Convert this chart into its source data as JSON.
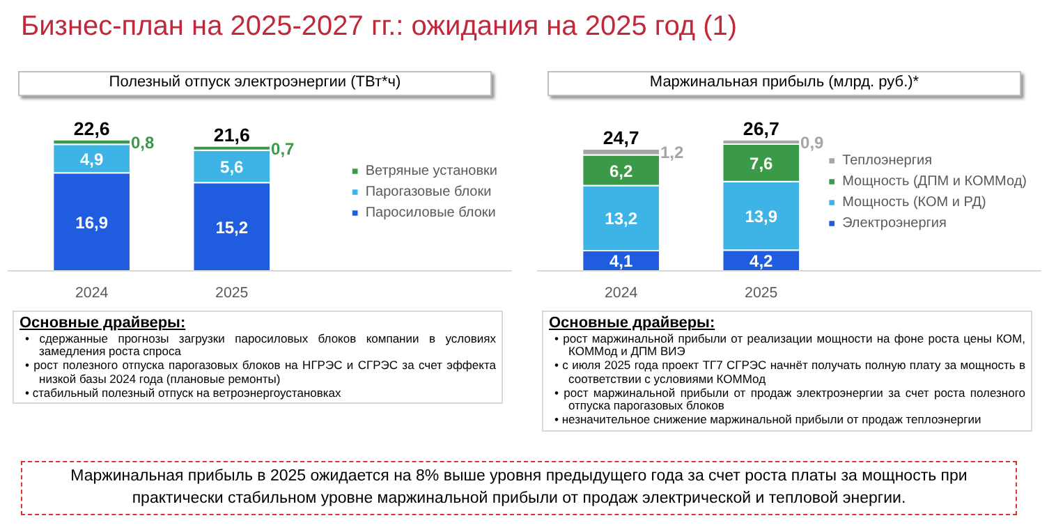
{
  "chart_data": [
    {
      "type": "other",
      "title": "Бизнес-план на 2025-2027 гг.: ожидания на 2025 год (1)"
    },
    {
      "type": "bar",
      "title": "Полезный отпуск электроэнергии (ТВт*ч)",
      "categories": [
        "2024",
        "2025"
      ],
      "stacked": true,
      "legend": "right",
      "tick_labels": "x",
      "grid": false,
      "series": [
        {
          "name": "Паросиловые блоки",
          "color": "#1f5ce0",
          "values": [
            16.9,
            15.2
          ],
          "value_labels": [
            "16,9",
            "15,2"
          ]
        },
        {
          "name": "Парогазовые блоки",
          "color": "#3db4e5",
          "values": [
            4.9,
            5.6
          ],
          "value_labels": [
            "4,9",
            "5,6"
          ]
        },
        {
          "name": "Ветряные установки",
          "color": "#3a9a47",
          "values": [
            0.8,
            0.7
          ],
          "value_labels": [
            "0,8",
            "0,7"
          ]
        }
      ],
      "totals": [
        "22,6",
        "21,6"
      ],
      "annotations": [
        "Основные драйверы:",
        "• сдержанные прогнозы загрузки паросиловых блоков компании в условиях замедления роста спроса",
        "• рост полезного отпуска парогазовых блоков на НГРЭС и СГРЭС за счет эффекта низкой базы 2024 года (плановые ремонты)",
        "• стабильный полезный отпуск на ветроэнергоустановках"
      ]
    },
    {
      "type": "bar",
      "title": "Маржинальная прибыль (млрд. руб.)*",
      "categories": [
        "2024",
        "2025"
      ],
      "stacked": true,
      "legend": "right",
      "tick_labels": "x",
      "grid": false,
      "series": [
        {
          "name": "Электроэнергия",
          "color": "#1f5ce0",
          "values": [
            4.1,
            4.2
          ],
          "value_labels": [
            "4,1",
            "4,2"
          ]
        },
        {
          "name": "Мощность (КОМ и РД)",
          "color": "#3db4e5",
          "values": [
            13.2,
            13.9
          ],
          "value_labels": [
            "13,2",
            "13,9"
          ]
        },
        {
          "name": "Мощность (ДПМ и КОММод)",
          "color": "#3a9a47",
          "values": [
            6.2,
            7.6
          ],
          "value_labels": [
            "6,2",
            "7,6"
          ]
        },
        {
          "name": "Теплоэнергия",
          "color": "#a6a6a6",
          "values": [
            1.2,
            0.9
          ],
          "value_labels": [
            "1,2",
            "0,9"
          ]
        }
      ],
      "totals": [
        "24,7",
        "26,7"
      ],
      "annotations": [
        "Основные драйверы:",
        "• рост маржинальной прибыли от реализации мощности на фоне роста цены КОМ, КОММод и ДПМ ВИЭ",
        "• с июля 2025 года проект ТГ7 СГРЭС начнёт получать полную плату за мощность в соответствии с условиями КОММод",
        "• рост маржинальной прибыли от продаж электроэнергии за счет роста полезного отпуска парогазовых блоков",
        "• незначительное снижение маржинальной прибыли от продаж теплоэнергии"
      ]
    },
    {
      "type": "other",
      "annotations": [
        "Маржинальная прибыль в 2025 ожидается на 8% выше уровня предыдущего года за счет роста платы за мощность при практически стабильном уровне маржинальной прибыли от продаж электрической и тепловой энергии."
      ]
    }
  ]
}
